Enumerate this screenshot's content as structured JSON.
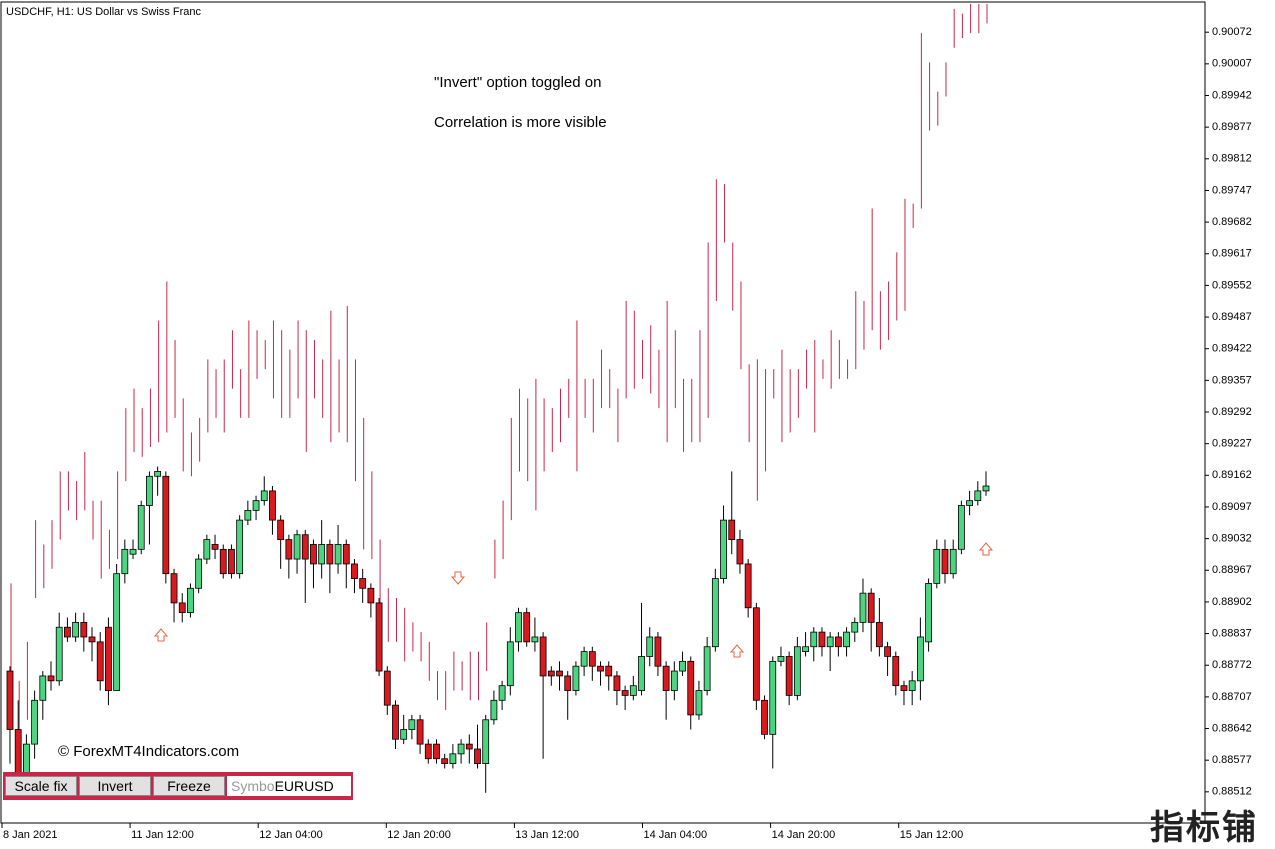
{
  "chart_data": {
    "type": "candlestick",
    "title": "USDCHF, H1:  US Dollar vs Swiss Franc",
    "annotations": [
      "\"Invert\" option toggled on",
      "Correlation is more visible"
    ],
    "copyright": "© ForexMT4Indicators.com",
    "up_color": "#4cd47f",
    "down_color": "#d8191e",
    "overlay_color": "#c8264a",
    "ylim": [
      0.88448,
      0.90134
    ],
    "yticks": [
      0.90072,
      0.90007,
      0.89942,
      0.89877,
      0.89812,
      0.89747,
      0.89682,
      0.89617,
      0.89552,
      0.89487,
      0.89422,
      0.89357,
      0.89292,
      0.89227,
      0.89162,
      0.89097,
      0.89032,
      0.88967,
      0.88902,
      0.88837,
      0.88772,
      0.88707,
      0.88642,
      0.88577,
      0.88512
    ],
    "xlabels": [
      "8 Jan 2021",
      "11 Jan 12:00",
      "12 Jan 04:00",
      "12 Jan 20:00",
      "13 Jan 12:00",
      "14 Jan 04:00",
      "14 Jan 20:00",
      "15 Jan 12:00"
    ],
    "candles": [
      [
        0.8876,
        0.8877,
        0.8857,
        0.8864
      ],
      [
        0.8864,
        0.887,
        0.8852,
        0.8855
      ],
      [
        0.8855,
        0.8863,
        0.885,
        0.8861
      ],
      [
        0.8861,
        0.8872,
        0.8858,
        0.887
      ],
      [
        0.887,
        0.8876,
        0.8866,
        0.8875
      ],
      [
        0.8875,
        0.8878,
        0.8872,
        0.8874
      ],
      [
        0.8874,
        0.8888,
        0.8873,
        0.8885
      ],
      [
        0.8885,
        0.8887,
        0.8882,
        0.8883
      ],
      [
        0.8883,
        0.8888,
        0.8882,
        0.8886
      ],
      [
        0.8886,
        0.8888,
        0.888,
        0.8883
      ],
      [
        0.8883,
        0.8885,
        0.8878,
        0.8882
      ],
      [
        0.8882,
        0.8884,
        0.8872,
        0.8874
      ],
      [
        0.8885,
        0.8887,
        0.8869,
        0.8872
      ],
      [
        0.8872,
        0.8898,
        0.8872,
        0.8896
      ],
      [
        0.8896,
        0.8903,
        0.8894,
        0.8901
      ],
      [
        0.89,
        0.8903,
        0.8899,
        0.8901
      ],
      [
        0.8901,
        0.8911,
        0.89,
        0.891
      ],
      [
        0.891,
        0.8917,
        0.8902,
        0.8916
      ],
      [
        0.8916,
        0.8918,
        0.8912,
        0.8917
      ],
      [
        0.8916,
        0.8917,
        0.8894,
        0.8896
      ],
      [
        0.8896,
        0.8897,
        0.8886,
        0.889
      ],
      [
        0.889,
        0.8892,
        0.8886,
        0.8888
      ],
      [
        0.8888,
        0.8894,
        0.8887,
        0.8893
      ],
      [
        0.8893,
        0.89,
        0.8892,
        0.8899
      ],
      [
        0.8899,
        0.8904,
        0.8898,
        0.8903
      ],
      [
        0.8902,
        0.8904,
        0.8899,
        0.8901
      ],
      [
        0.8901,
        0.8902,
        0.8895,
        0.8896
      ],
      [
        0.8901,
        0.8902,
        0.8895,
        0.8896
      ],
      [
        0.8896,
        0.8908,
        0.8895,
        0.8907
      ],
      [
        0.8907,
        0.8911,
        0.8906,
        0.8909
      ],
      [
        0.8909,
        0.8912,
        0.8907,
        0.8911
      ],
      [
        0.8911,
        0.8916,
        0.891,
        0.8913
      ],
      [
        0.8913,
        0.8914,
        0.8904,
        0.8907
      ],
      [
        0.8907,
        0.8908,
        0.8897,
        0.8903
      ],
      [
        0.8903,
        0.8904,
        0.8895,
        0.8899
      ],
      [
        0.8899,
        0.8905,
        0.8896,
        0.8904
      ],
      [
        0.8904,
        0.8905,
        0.889,
        0.8899
      ],
      [
        0.8902,
        0.8903,
        0.8893,
        0.8898
      ],
      [
        0.8898,
        0.8907,
        0.8895,
        0.8902
      ],
      [
        0.8902,
        0.8903,
        0.8892,
        0.8898
      ],
      [
        0.8898,
        0.8906,
        0.8896,
        0.8902
      ],
      [
        0.8902,
        0.8903,
        0.8893,
        0.8898
      ],
      [
        0.8898,
        0.8899,
        0.8892,
        0.8895
      ],
      [
        0.8895,
        0.8897,
        0.889,
        0.8893
      ],
      [
        0.8893,
        0.8894,
        0.8887,
        0.889
      ],
      [
        0.889,
        0.8891,
        0.8875,
        0.8876
      ],
      [
        0.8876,
        0.8877,
        0.8867,
        0.8869
      ],
      [
        0.8869,
        0.887,
        0.886,
        0.8862
      ],
      [
        0.8862,
        0.8867,
        0.8861,
        0.8864
      ],
      [
        0.8864,
        0.8867,
        0.8862,
        0.8866
      ],
      [
        0.8866,
        0.8867,
        0.8859,
        0.8861
      ],
      [
        0.8861,
        0.8862,
        0.8857,
        0.8858
      ],
      [
        0.8861,
        0.8862,
        0.8857,
        0.8858
      ],
      [
        0.8858,
        0.8859,
        0.8856,
        0.8857
      ],
      [
        0.8857,
        0.8861,
        0.8856,
        0.8859
      ],
      [
        0.8859,
        0.8862,
        0.8857,
        0.8861
      ],
      [
        0.8861,
        0.8863,
        0.8857,
        0.886
      ],
      [
        0.886,
        0.8865,
        0.8856,
        0.8857
      ],
      [
        0.8857,
        0.8867,
        0.8851,
        0.8866
      ],
      [
        0.8866,
        0.8872,
        0.8865,
        0.887
      ],
      [
        0.887,
        0.8874,
        0.8868,
        0.8873
      ],
      [
        0.8873,
        0.8885,
        0.8871,
        0.8882
      ],
      [
        0.8882,
        0.8889,
        0.888,
        0.8888
      ],
      [
        0.8888,
        0.8889,
        0.8881,
        0.8882
      ],
      [
        0.8882,
        0.8887,
        0.888,
        0.8883
      ],
      [
        0.8883,
        0.8884,
        0.8858,
        0.8875
      ],
      [
        0.8876,
        0.8877,
        0.8873,
        0.8875
      ],
      [
        0.8876,
        0.8878,
        0.8872,
        0.8875
      ],
      [
        0.8875,
        0.8876,
        0.8866,
        0.8872
      ],
      [
        0.8872,
        0.8878,
        0.8871,
        0.8877
      ],
      [
        0.8877,
        0.8881,
        0.8875,
        0.888
      ],
      [
        0.888,
        0.8881,
        0.8874,
        0.8877
      ],
      [
        0.8877,
        0.8878,
        0.8873,
        0.8876
      ],
      [
        0.8877,
        0.8878,
        0.8872,
        0.8875
      ],
      [
        0.8875,
        0.8876,
        0.8869,
        0.8872
      ],
      [
        0.8872,
        0.8873,
        0.8868,
        0.8871
      ],
      [
        0.8871,
        0.8875,
        0.887,
        0.8873
      ],
      [
        0.8872,
        0.889,
        0.8871,
        0.8879
      ],
      [
        0.8879,
        0.8885,
        0.8877,
        0.8883
      ],
      [
        0.8883,
        0.8884,
        0.8875,
        0.8877
      ],
      [
        0.8877,
        0.8878,
        0.8866,
        0.8872
      ],
      [
        0.8872,
        0.8878,
        0.887,
        0.8876
      ],
      [
        0.8876,
        0.888,
        0.8875,
        0.8878
      ],
      [
        0.8878,
        0.8879,
        0.8864,
        0.8867
      ],
      [
        0.8867,
        0.8874,
        0.8866,
        0.8872
      ],
      [
        0.8872,
        0.8883,
        0.8871,
        0.8881
      ],
      [
        0.8881,
        0.8897,
        0.888,
        0.8895
      ],
      [
        0.8895,
        0.891,
        0.8894,
        0.8907
      ],
      [
        0.8907,
        0.8917,
        0.89,
        0.8903
      ],
      [
        0.8903,
        0.8905,
        0.8896,
        0.8898
      ],
      [
        0.8898,
        0.8899,
        0.8887,
        0.8889
      ],
      [
        0.8889,
        0.889,
        0.8868,
        0.887
      ],
      [
        0.887,
        0.8871,
        0.8862,
        0.8863
      ],
      [
        0.8863,
        0.8879,
        0.8856,
        0.8878
      ],
      [
        0.8878,
        0.8881,
        0.8877,
        0.8879
      ],
      [
        0.8879,
        0.888,
        0.8869,
        0.8871
      ],
      [
        0.8871,
        0.8883,
        0.887,
        0.8881
      ],
      [
        0.888,
        0.8884,
        0.8879,
        0.8881
      ],
      [
        0.8881,
        0.8885,
        0.8878,
        0.8884
      ],
      [
        0.8884,
        0.8885,
        0.8879,
        0.8881
      ],
      [
        0.8881,
        0.8884,
        0.8876,
        0.8883
      ],
      [
        0.8883,
        0.8884,
        0.8879,
        0.8881
      ],
      [
        0.8881,
        0.8885,
        0.8879,
        0.8884
      ],
      [
        0.8884,
        0.8887,
        0.8882,
        0.8886
      ],
      [
        0.8886,
        0.8895,
        0.8884,
        0.8892
      ],
      [
        0.8892,
        0.8893,
        0.888,
        0.8886
      ],
      [
        0.8886,
        0.8891,
        0.8879,
        0.8881
      ],
      [
        0.8881,
        0.8882,
        0.8875,
        0.8879
      ],
      [
        0.8879,
        0.888,
        0.8871,
        0.8873
      ],
      [
        0.8873,
        0.8874,
        0.8869,
        0.8872
      ],
      [
        0.8872,
        0.8876,
        0.8869,
        0.8874
      ],
      [
        0.8874,
        0.8887,
        0.887,
        0.8883
      ],
      [
        0.8882,
        0.8895,
        0.888,
        0.8894
      ],
      [
        0.8894,
        0.8903,
        0.8893,
        0.8901
      ],
      [
        0.8901,
        0.8903,
        0.8894,
        0.8896
      ],
      [
        0.8896,
        0.8903,
        0.8895,
        0.8901
      ],
      [
        0.8901,
        0.8911,
        0.89,
        0.891
      ],
      [
        0.891,
        0.8913,
        0.8908,
        0.8911
      ],
      [
        0.8911,
        0.8915,
        0.891,
        0.8913
      ],
      [
        0.8913,
        0.8917,
        0.8912,
        0.8914
      ]
    ],
    "overlay": [
      [
        0.8894,
        0.887
      ],
      [
        0.8874,
        0.8862
      ],
      [
        0.8882,
        0.8866
      ],
      [
        0.8907,
        0.8891
      ],
      [
        0.8902,
        0.8893
      ],
      [
        0.8907,
        0.8897
      ],
      [
        0.8917,
        0.8903
      ],
      [
        0.8917,
        0.8909
      ],
      [
        0.8915,
        0.8907
      ],
      [
        0.8921,
        0.8909
      ],
      [
        0.8911,
        0.8903
      ],
      [
        0.8911,
        0.8895
      ],
      [
        0.8905,
        0.8897
      ],
      [
        0.8917,
        0.8899
      ],
      [
        0.893,
        0.8915
      ],
      [
        0.8934,
        0.8921
      ],
      [
        0.893,
        0.892
      ],
      [
        0.8934,
        0.8922
      ],
      [
        0.8948,
        0.8923
      ],
      [
        0.8956,
        0.8925
      ],
      [
        0.8944,
        0.8928
      ],
      [
        0.8932,
        0.8917
      ],
      [
        0.8925,
        0.8916
      ],
      [
        0.8928,
        0.8919
      ],
      [
        0.894,
        0.8925
      ],
      [
        0.8938,
        0.8928
      ],
      [
        0.894,
        0.8925
      ],
      [
        0.8946,
        0.8934
      ],
      [
        0.8938,
        0.8928
      ],
      [
        0.8948,
        0.8928
      ],
      [
        0.8946,
        0.8936
      ],
      [
        0.8944,
        0.8938
      ],
      [
        0.8948,
        0.8932
      ],
      [
        0.8946,
        0.8928
      ],
      [
        0.8942,
        0.8928
      ],
      [
        0.8948,
        0.8932
      ],
      [
        0.8946,
        0.8921
      ],
      [
        0.8944,
        0.8932
      ],
      [
        0.894,
        0.8928
      ],
      [
        0.895,
        0.8923
      ],
      [
        0.894,
        0.8925
      ],
      [
        0.8951,
        0.8923
      ],
      [
        0.894,
        0.8915
      ],
      [
        0.8928,
        0.8901
      ],
      [
        0.8917,
        0.8899
      ],
      [
        0.8903,
        0.8889
      ],
      [
        0.8893,
        0.8882
      ],
      [
        0.8891,
        0.8882
      ],
      [
        0.8889,
        0.8878
      ],
      [
        0.8886,
        0.888
      ],
      [
        0.8884,
        0.8878
      ],
      [
        0.8882,
        0.8874
      ],
      [
        0.8876,
        0.887
      ],
      [
        0.8876,
        0.8868
      ],
      [
        0.888,
        0.8872
      ],
      [
        0.8878,
        0.8872
      ],
      [
        0.888,
        0.887
      ],
      [
        0.888,
        0.887
      ],
      [
        0.8886,
        0.8876
      ],
      [
        0.8903,
        0.8895
      ],
      [
        0.8911,
        0.8899
      ],
      [
        0.8928,
        0.8907
      ],
      [
        0.8934,
        0.8917
      ],
      [
        0.8932,
        0.8915
      ],
      [
        0.8936,
        0.8909
      ],
      [
        0.8932,
        0.8917
      ],
      [
        0.893,
        0.8921
      ],
      [
        0.8934,
        0.8923
      ],
      [
        0.8936,
        0.8928
      ],
      [
        0.8948,
        0.8917
      ],
      [
        0.8936,
        0.8928
      ],
      [
        0.8936,
        0.8925
      ],
      [
        0.8942,
        0.893
      ],
      [
        0.8938,
        0.893
      ],
      [
        0.8934,
        0.8923
      ],
      [
        0.8952,
        0.8932
      ],
      [
        0.895,
        0.8934
      ],
      [
        0.8944,
        0.8936
      ],
      [
        0.8947,
        0.8933
      ],
      [
        0.8942,
        0.893
      ],
      [
        0.8952,
        0.8923
      ],
      [
        0.8946,
        0.893
      ],
      [
        0.8936,
        0.8921
      ],
      [
        0.8936,
        0.8923
      ],
      [
        0.8946,
        0.8923
      ],
      [
        0.8964,
        0.8928
      ],
      [
        0.8977,
        0.8952
      ],
      [
        0.8976,
        0.8964
      ],
      [
        0.8964,
        0.895
      ],
      [
        0.8956,
        0.8938
      ],
      [
        0.8939,
        0.8923
      ],
      [
        0.894,
        0.8911
      ],
      [
        0.8938,
        0.8917
      ],
      [
        0.8938,
        0.8932
      ],
      [
        0.8942,
        0.8923
      ],
      [
        0.8938,
        0.8925
      ],
      [
        0.8938,
        0.8928
      ],
      [
        0.8942,
        0.8934
      ],
      [
        0.8944,
        0.8925
      ],
      [
        0.894,
        0.8936
      ],
      [
        0.8946,
        0.8934
      ],
      [
        0.8944,
        0.8936
      ],
      [
        0.894,
        0.8936
      ],
      [
        0.8954,
        0.8938
      ],
      [
        0.8952,
        0.8942
      ],
      [
        0.8971,
        0.8946
      ],
      [
        0.8954,
        0.8942
      ],
      [
        0.8956,
        0.8944
      ],
      [
        0.8962,
        0.8948
      ],
      [
        0.8973,
        0.895
      ],
      [
        0.8972,
        0.8967
      ],
      [
        0.9007,
        0.8971
      ],
      [
        0.9001,
        0.8987
      ],
      [
        0.8995,
        0.8988
      ],
      [
        0.9001,
        0.8994
      ],
      [
        0.9012,
        0.9004
      ],
      [
        0.9011,
        0.9006
      ],
      [
        0.9013,
        0.9007
      ],
      [
        0.9013,
        0.9007
      ],
      [
        0.9013,
        0.9009
      ]
    ]
  },
  "controls": {
    "buttons": [
      "Scale fix",
      "Invert",
      "Freeze"
    ],
    "symbol_label": "Symbo",
    "symbol_value": "EURUSD"
  },
  "watermark": "指标铺"
}
